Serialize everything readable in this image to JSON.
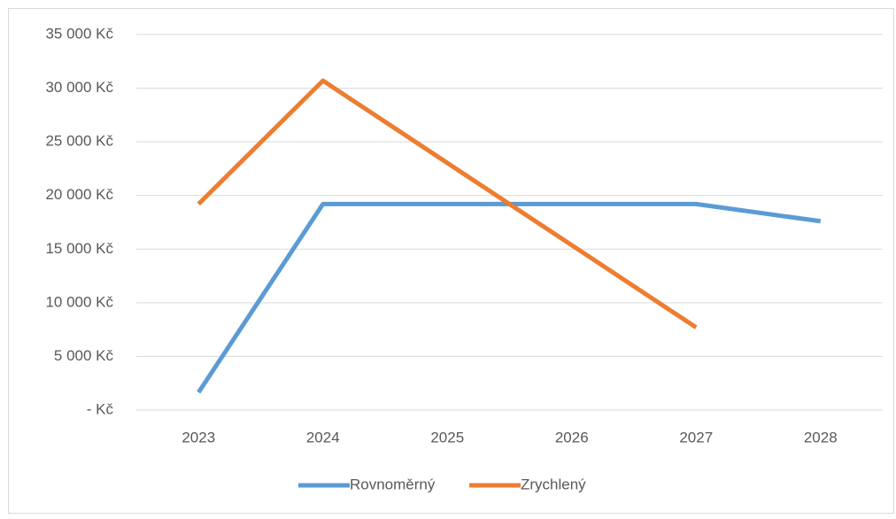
{
  "chart_data": {
    "type": "line",
    "categories": [
      "2023",
      "2024",
      "2025",
      "2026",
      "2027",
      "2028"
    ],
    "series": [
      {
        "name": "Rovnoměrný",
        "color": "#5b9bd5",
        "values": [
          1650,
          19200,
          19200,
          19200,
          19200,
          17600
        ]
      },
      {
        "name": "Zrychlený",
        "color": "#ed7d31",
        "values": [
          19200,
          30700,
          23030,
          15370,
          7700,
          null
        ]
      }
    ],
    "ylim": [
      0,
      35000
    ],
    "yticks": [
      {
        "value": 0,
        "label": "-   Kč"
      },
      {
        "value": 5000,
        "label": "5 000 Kč"
      },
      {
        "value": 10000,
        "label": "10 000 Kč"
      },
      {
        "value": 15000,
        "label": "15 000 Kč"
      },
      {
        "value": 20000,
        "label": "20 000 Kč"
      },
      {
        "value": 25000,
        "label": "25 000 Kč"
      },
      {
        "value": 30000,
        "label": "30 000 Kč"
      },
      {
        "value": 35000,
        "label": "35 000 Kč"
      }
    ],
    "grid": true,
    "legend": "bottom"
  }
}
